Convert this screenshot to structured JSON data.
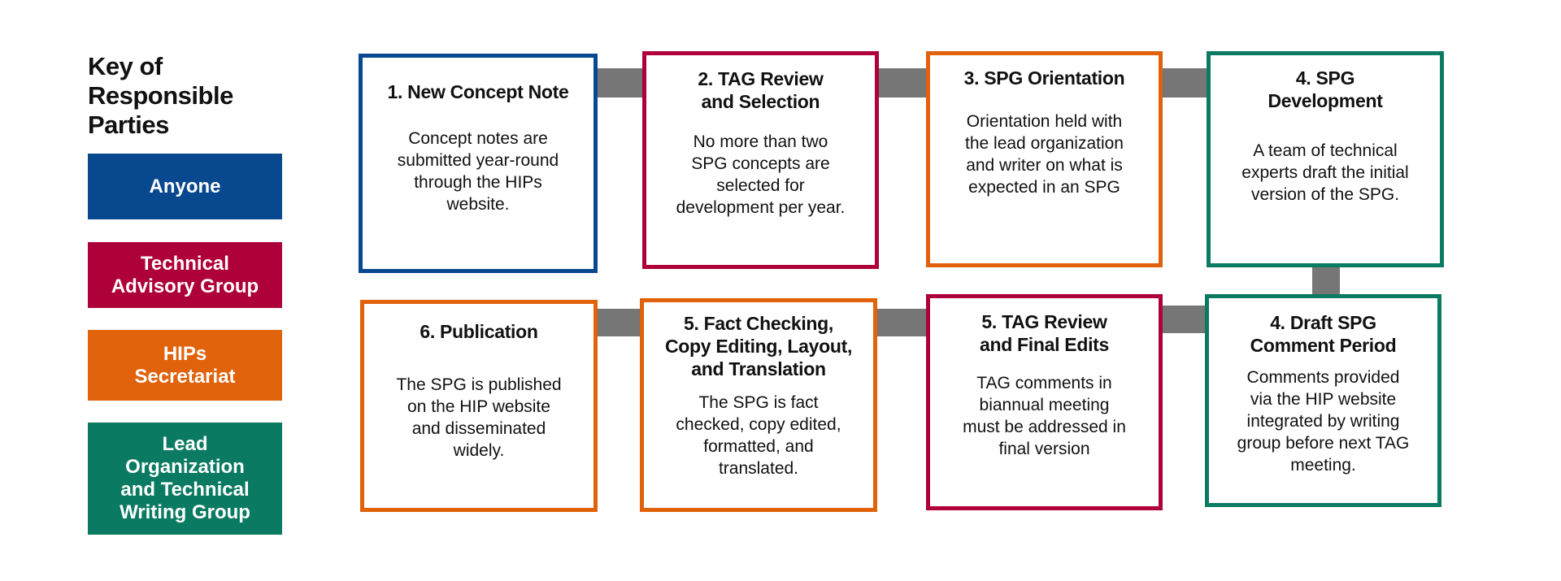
{
  "legend": {
    "title": "Key of\nResponsible\nParties",
    "items": [
      {
        "label": "Anyone",
        "color": "#08488e"
      },
      {
        "label": "Technical\nAdvisory Group",
        "color": "#ae0039"
      },
      {
        "label": "HIPs\nSecretariat",
        "color": "#e0620b"
      },
      {
        "label": "Lead\nOrganization\nand Technical\nWriting Group",
        "color": "#0b7a62"
      }
    ]
  },
  "connector_color": "#767676",
  "steps": [
    {
      "title": "1. New Concept Note",
      "body": "Concept notes are\nsubmitted year-round\nthrough the HIPs\nwebsite.",
      "party": "Anyone"
    },
    {
      "title": "2. TAG Review\nand Selection",
      "body": "No more than two\nSPG concepts are\nselected for\ndevelopment per year.",
      "party": "Technical Advisory Group"
    },
    {
      "title": "3. SPG Orientation",
      "body": "Orientation held with\nthe lead organization\nand writer on what is\nexpected in an SPG",
      "party": "HIPs Secretariat"
    },
    {
      "title": "4. SPG\nDevelopment",
      "body": "A team of technical\nexperts draft the initial\nversion of the SPG.",
      "party": "Lead Organization and Technical Writing Group"
    },
    {
      "title": "4. Draft SPG\nComment Period",
      "body": "Comments provided\nvia the HIP website\nintegrated by writing\ngroup before next TAG\nmeeting.",
      "party": "Lead Organization and Technical Writing Group"
    },
    {
      "title": "5. TAG Review\nand Final Edits",
      "body": "TAG comments in\nbiannual meeting\nmust be addressed in\nfinal version",
      "party": "Technical Advisory Group"
    },
    {
      "title": "5. Fact Checking,\nCopy Editing, Layout,\nand Translation",
      "body": "The SPG is fact\nchecked, copy edited,\nformatted, and\ntranslated.",
      "party": "HIPs Secretariat"
    },
    {
      "title": "6. Publication",
      "body": "The SPG is published\non the HIP website\nand disseminated\nwidely.",
      "party": "HIPs Secretariat"
    }
  ]
}
